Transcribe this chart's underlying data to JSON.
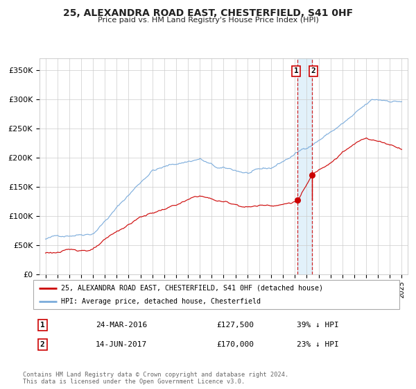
{
  "title": "25, ALEXANDRA ROAD EAST, CHESTERFIELD, S41 0HF",
  "subtitle": "Price paid vs. HM Land Registry's House Price Index (HPI)",
  "legend_label_red": "25, ALEXANDRA ROAD EAST, CHESTERFIELD, S41 0HF (detached house)",
  "legend_label_blue": "HPI: Average price, detached house, Chesterfield",
  "transaction1_date": "24-MAR-2016",
  "transaction1_price": 127500,
  "transaction1_note": "39% ↓ HPI",
  "transaction2_date": "14-JUN-2017",
  "transaction2_price": 170000,
  "transaction2_note": "23% ↓ HPI",
  "footer": "Contains HM Land Registry data © Crown copyright and database right 2024.\nThis data is licensed under the Open Government Licence v3.0.",
  "red_color": "#cc0000",
  "blue_color": "#7aabdb",
  "background_color": "#ffffff",
  "grid_color": "#cccccc",
  "vline1_x": 2016.22,
  "vline2_x": 2017.45,
  "ylim": [
    0,
    370000
  ],
  "xlim_start": 1994.5,
  "xlim_end": 2025.5
}
